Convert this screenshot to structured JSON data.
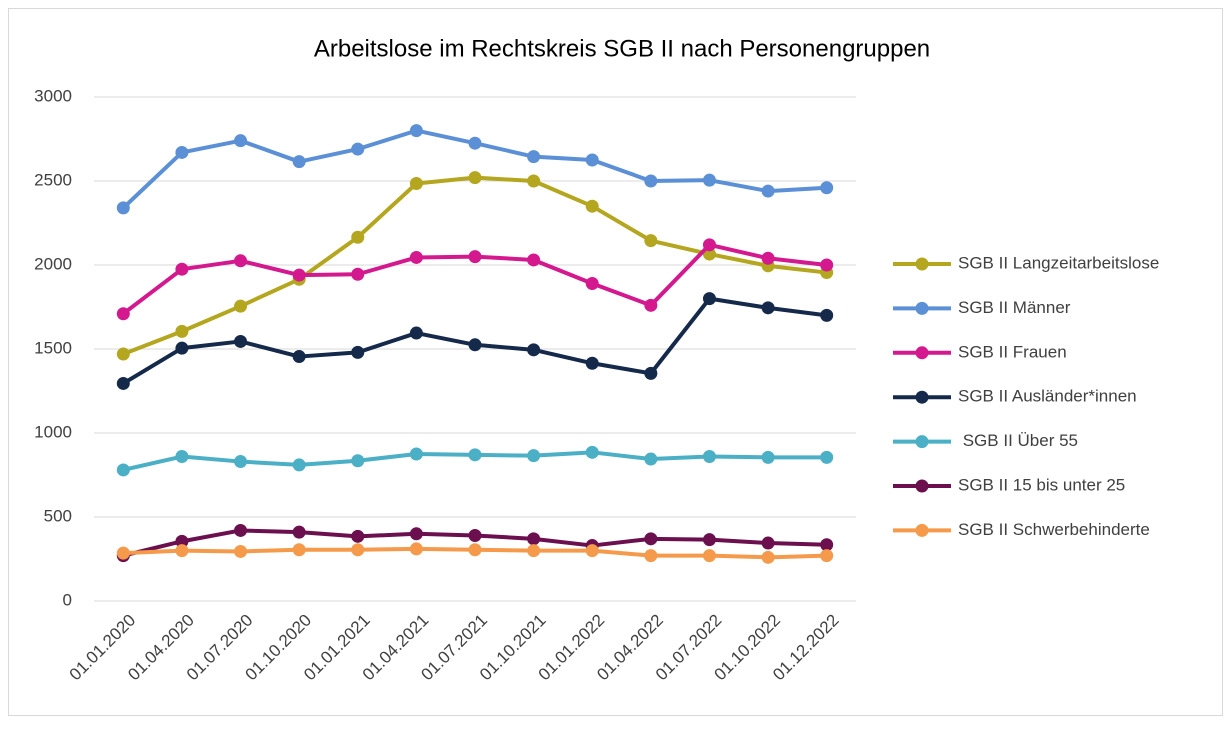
{
  "chart_data": {
    "type": "line",
    "title": "Arbeitslose im Rechtskreis SGB II nach Personengruppen",
    "categories": [
      "01.01.2020",
      "01.04.2020",
      "01.07.2020",
      "01.10.2020",
      "01.01.2021",
      "01.04.2021",
      "01.07.2021",
      "01.10.2021",
      "01.01.2022",
      "01.04.2022",
      "01.07.2022",
      "01.10.2022",
      "01.12.2022"
    ],
    "series": [
      {
        "name": "SGB II Langzeitarbeitslose",
        "color": "#b4a61e",
        "values": [
          1470,
          1605,
          1755,
          1915,
          2165,
          2485,
          2520,
          2500,
          2350,
          2145,
          2065,
          1995,
          1955
        ]
      },
      {
        "name": "SGB II Männer",
        "color": "#5b8fd6",
        "values": [
          2340,
          2670,
          2740,
          2615,
          2690,
          2800,
          2725,
          2645,
          2625,
          2500,
          2505,
          2440,
          2460
        ]
      },
      {
        "name": "SGB II Frauen",
        "color": "#d4198f",
        "values": [
          1710,
          1975,
          2025,
          1940,
          1945,
          2045,
          2050,
          2030,
          1890,
          1760,
          2120,
          2040,
          2000
        ]
      },
      {
        "name": "SGB II Ausländer*innen",
        "color": "#15294b",
        "values": [
          1295,
          1505,
          1545,
          1455,
          1480,
          1595,
          1525,
          1495,
          1415,
          1355,
          1800,
          1745,
          1700
        ]
      },
      {
        "name": " SGB II Über 55",
        "color": "#4bafc6",
        "values": [
          780,
          860,
          830,
          810,
          835,
          875,
          870,
          865,
          885,
          845,
          860,
          855,
          855
        ]
      },
      {
        "name": "SGB II 15 bis unter 25",
        "color": "#6b0f4e",
        "values": [
          270,
          355,
          420,
          410,
          385,
          400,
          390,
          370,
          330,
          370,
          365,
          345,
          335
        ]
      },
      {
        "name": "SGB II Schwerbehinderte",
        "color": "#f59a4a",
        "values": [
          285,
          300,
          295,
          305,
          305,
          310,
          305,
          300,
          300,
          270,
          270,
          260,
          270
        ]
      }
    ],
    "ylim": [
      0,
      3000
    ],
    "yticks": [
      0,
      500,
      1000,
      1500,
      2000,
      2500,
      3000
    ],
    "grid": true,
    "legend": "right"
  }
}
